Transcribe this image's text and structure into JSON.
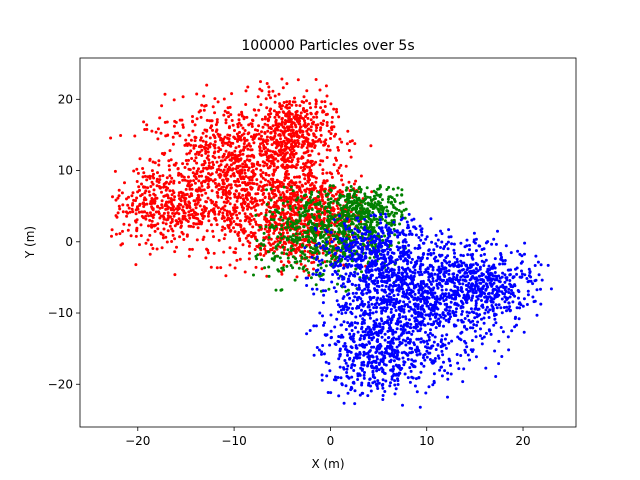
{
  "chart_data": {
    "type": "scatter",
    "title": "100000 Particles over 5s",
    "xlabel": "X (m)",
    "ylabel": "Y (m)",
    "xlim": [
      -26,
      25.5
    ],
    "ylim": [
      -26,
      25.8
    ],
    "xticks": [
      -20,
      -10,
      0,
      10,
      20
    ],
    "yticks": [
      -20,
      -10,
      0,
      10,
      20
    ],
    "xtick_labels": [
      "−20",
      "−10",
      "0",
      "10",
      "20"
    ],
    "ytick_labels": [
      "−20",
      "−10",
      "0",
      "10",
      "20"
    ],
    "grid": false,
    "legend": "none",
    "series": [
      {
        "color": "#ff0000",
        "clusters": [
          {
            "center": [
              -10,
              9.5
            ],
            "spread": [
              4.5,
              5
            ],
            "count": 1100
          },
          {
            "center": [
              -4,
              15
            ],
            "spread": [
              2.2,
              3
            ],
            "count": 450
          },
          {
            "center": [
              -17,
              5
            ],
            "spread": [
              2.8,
              2.5
            ],
            "count": 350
          },
          {
            "center": [
              -4,
              2
            ],
            "spread": [
              3.2,
              3.2
            ],
            "count": 550
          },
          {
            "center": [
              -1,
              6
            ],
            "spread": [
              2.5,
              2.5
            ],
            "count": 250
          }
        ],
        "x_range": [
          -23,
          5
        ],
        "y_range": [
          -5,
          23
        ]
      },
      {
        "color": "#008000",
        "clusters": [
          {
            "center": [
              0,
              1
            ],
            "spread": [
              3.8,
              3.3
            ],
            "count": 750
          },
          {
            "center": [
              4,
              4.5
            ],
            "spread": [
              2,
              1.6
            ],
            "count": 250
          }
        ],
        "x_range": [
          -8,
          8
        ],
        "y_range": [
          -7,
          8
        ]
      },
      {
        "color": "#0000ff",
        "clusters": [
          {
            "center": [
              9,
              -8
            ],
            "spread": [
              4.5,
              4.5
            ],
            "count": 1200
          },
          {
            "center": [
              5,
              -16
            ],
            "spread": [
              3,
              2.8
            ],
            "count": 450
          },
          {
            "center": [
              16,
              -6
            ],
            "spread": [
              2.8,
              2.4
            ],
            "count": 400
          },
          {
            "center": [
              4,
              -2
            ],
            "spread": [
              3,
              3
            ],
            "count": 450
          }
        ],
        "x_range": [
          -3,
          23
        ],
        "y_range": [
          -24,
          4
        ]
      }
    ]
  }
}
